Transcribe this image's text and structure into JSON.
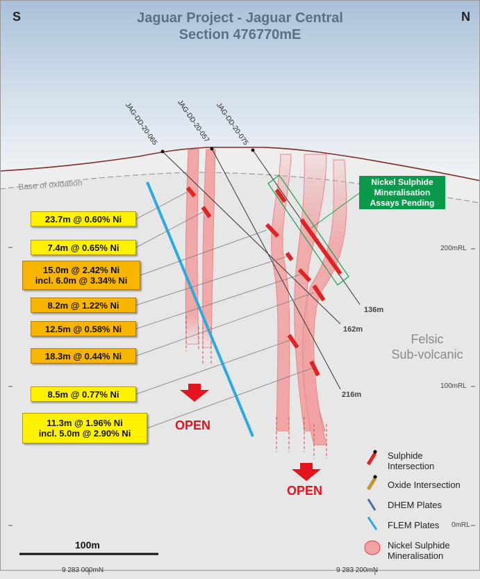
{
  "header": {
    "title_line1": "Jaguar Project - Jaguar Central",
    "title_line2": "Section 476770mE",
    "left_direction": "S",
    "right_direction": "N"
  },
  "base_of_oxidation": "Base of oxidation",
  "drillholes": [
    {
      "name": "JAG-DD-20-065",
      "depth": "162m"
    },
    {
      "name": "JAG-DD-20-057",
      "depth": "216m"
    },
    {
      "name": "JAG-DD-20-075",
      "depth": "136m"
    }
  ],
  "intercepts": [
    {
      "lines": [
        "23.7m @ 0.60% Ni"
      ],
      "style": "yellow"
    },
    {
      "lines": [
        "7.4m @ 0.65% Ni"
      ],
      "style": "yellow"
    },
    {
      "lines": [
        "15.0m @ 2.42% Ni",
        "incl. 6.0m @ 3.34% Ni"
      ],
      "style": "orange"
    },
    {
      "lines": [
        "8.2m @ 1.22% Ni"
      ],
      "style": "orange"
    },
    {
      "lines": [
        "12.5m @ 0.58% Ni"
      ],
      "style": "orange"
    },
    {
      "lines": [
        "18.3m @ 0.44% Ni"
      ],
      "style": "orange"
    },
    {
      "lines": [
        "8.5m @ 0.77% Ni"
      ],
      "style": "yellow"
    },
    {
      "lines": [
        "11.3m @ 1.96% Ni",
        "incl. 5.0m @ 2.90% Ni"
      ],
      "style": "yellow"
    }
  ],
  "pending_label": [
    "Nickel Sulphide",
    "Mineralisation",
    "Assays Pending"
  ],
  "rock_label": [
    "Felsic",
    "Sub-volcanic"
  ],
  "open_labels": [
    "OPEN",
    "OPEN"
  ],
  "rl_labels": [
    "200mRL",
    "100mRL",
    "0mRL"
  ],
  "northings": [
    "9 283 000mN",
    "9 283 200mN"
  ],
  "scale_bar": "100m",
  "legend": [
    {
      "label": [
        "Sulphide",
        "Intersection"
      ],
      "icon": "sulphide-icon"
    },
    {
      "label": [
        "Oxide Intersection"
      ],
      "icon": "oxide-icon"
    },
    {
      "label": [
        "DHEM Plates"
      ],
      "icon": "dhem-icon"
    },
    {
      "label": [
        "FLEM Plates"
      ],
      "icon": "flem-icon"
    },
    {
      "label": [
        "Nickel Sulphide",
        "Mineralisation"
      ],
      "icon": "mineralisation-icon"
    }
  ],
  "colors": {
    "mineralisation": "#f2a2a2",
    "intersection": "#e02424",
    "flem": "#29aae1",
    "dhem": "#4a6b9a",
    "oxide": "#c8962e",
    "open": "#e3141b",
    "pending_box": "#0b9a4c",
    "callout_yellow": "#fff200",
    "callout_orange": "#f7b500"
  }
}
